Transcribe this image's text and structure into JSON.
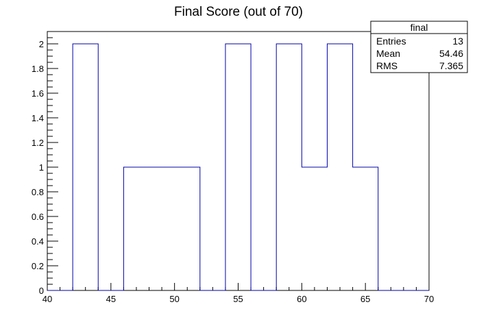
{
  "chart_data": {
    "type": "histogram",
    "title": "Final Score (out of 70)",
    "xlabel": "",
    "ylabel": "",
    "xlim": [
      40,
      70
    ],
    "ylim": [
      0,
      2.1
    ],
    "grid": false,
    "bin_width": 2,
    "bins": [
      {
        "x_low": 40,
        "x_high": 42,
        "count": 0
      },
      {
        "x_low": 42,
        "x_high": 44,
        "count": 2
      },
      {
        "x_low": 44,
        "x_high": 46,
        "count": 0
      },
      {
        "x_low": 46,
        "x_high": 48,
        "count": 1
      },
      {
        "x_low": 48,
        "x_high": 50,
        "count": 1
      },
      {
        "x_low": 50,
        "x_high": 52,
        "count": 1
      },
      {
        "x_low": 52,
        "x_high": 54,
        "count": 0
      },
      {
        "x_low": 54,
        "x_high": 56,
        "count": 2
      },
      {
        "x_low": 56,
        "x_high": 58,
        "count": 0
      },
      {
        "x_low": 58,
        "x_high": 60,
        "count": 2
      },
      {
        "x_low": 60,
        "x_high": 62,
        "count": 1
      },
      {
        "x_low": 62,
        "x_high": 64,
        "count": 2
      },
      {
        "x_low": 64,
        "x_high": 66,
        "count": 1
      },
      {
        "x_low": 66,
        "x_high": 68,
        "count": 0
      },
      {
        "x_low": 68,
        "x_high": 70,
        "count": 0
      }
    ],
    "x_ticks": [
      40,
      45,
      50,
      55,
      60,
      65,
      70
    ],
    "x_tick_labels": [
      "40",
      "45",
      "50",
      "55",
      "60",
      "65",
      "70"
    ],
    "y_ticks": [
      0,
      0.2,
      0.4,
      0.6,
      0.8,
      1,
      1.2,
      1.4,
      1.6,
      1.8,
      2
    ],
    "y_tick_labels": [
      "0",
      "0.2",
      "0.4",
      "0.6",
      "0.8",
      "1",
      "1.2",
      "1.4",
      "1.6",
      "1.8",
      "2"
    ],
    "line_color": "#0000aa",
    "stats_box": {
      "name": "final",
      "placement": "top-right",
      "rows": [
        {
          "label": "Entries",
          "value": "13"
        },
        {
          "label": "Mean",
          "value": "54.46"
        },
        {
          "label": "RMS",
          "value": "7.365"
        }
      ]
    }
  }
}
